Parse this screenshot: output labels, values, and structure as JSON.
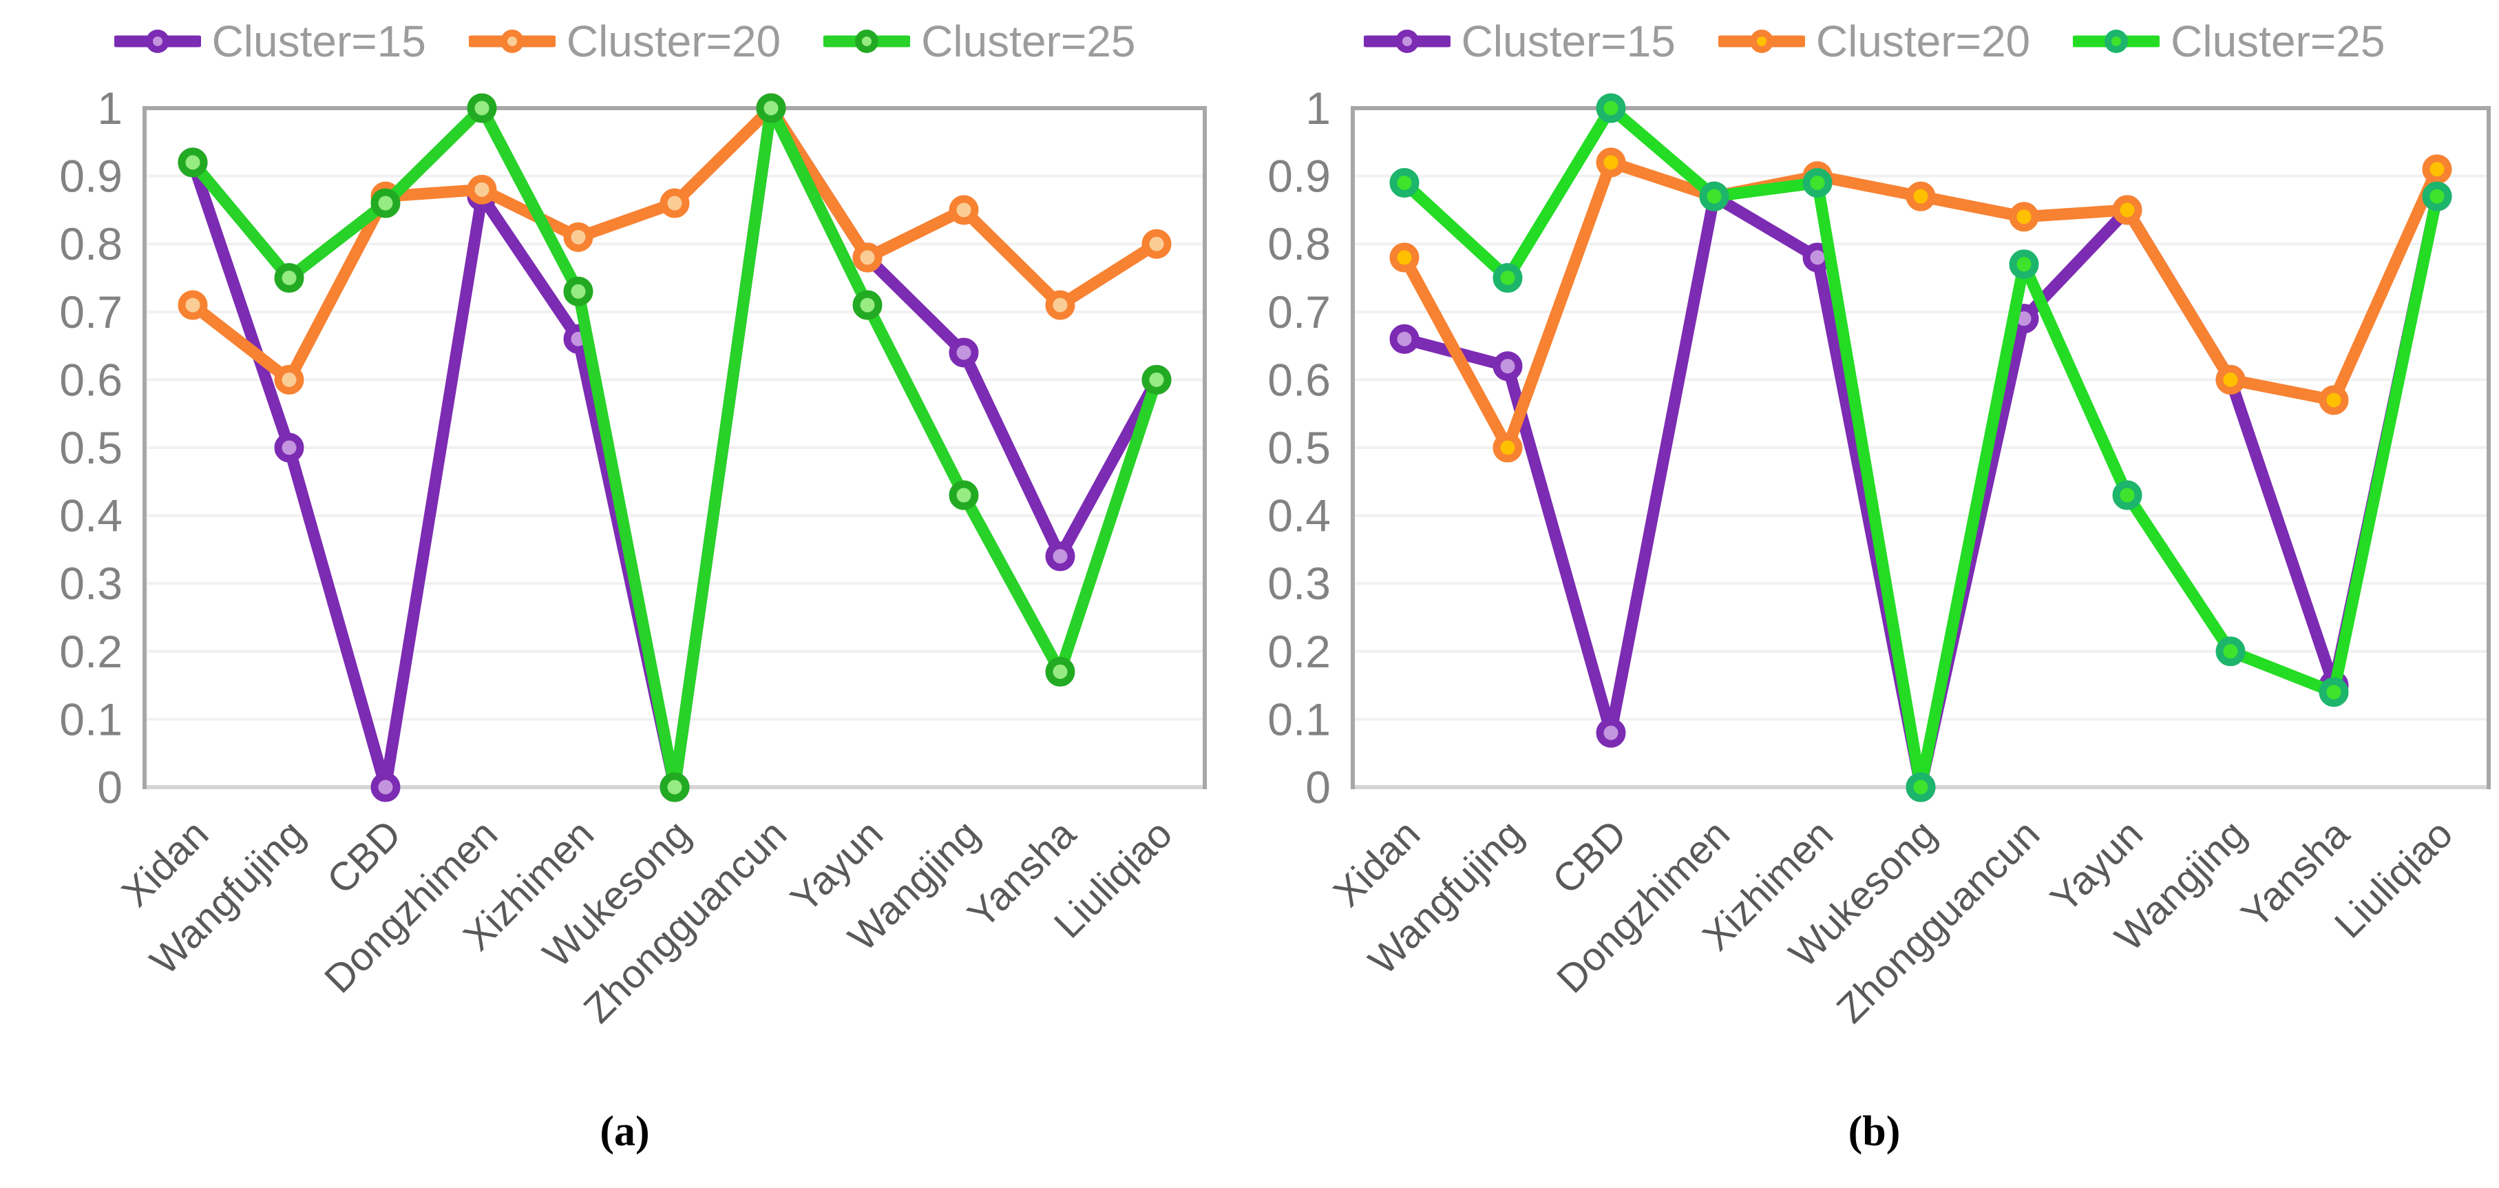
{
  "figure": {
    "background": "#ffffff",
    "caption_a": "(a)",
    "caption_b": "(b)"
  },
  "style_colors": {
    "gridline": "#f1f1f1",
    "plot_border": "#a7a7a7",
    "baseline": "#d5d5d5",
    "y_tick_text": "#828282",
    "x_label_text": "#595959",
    "legend_text": "#9c9c9c",
    "caption_text": "#000000"
  },
  "chart_data": [
    {
      "id": "a",
      "type": "line",
      "caption": "(a)",
      "legend_position": "top",
      "grid": true,
      "ylim": [
        0,
        1
      ],
      "yticks": [
        1,
        0.9,
        0.8,
        0.7,
        0.6,
        0.5,
        0.4,
        0.3,
        0.2,
        0.1,
        0
      ],
      "categories": [
        "Xidan",
        "Wangfujing",
        "CBD",
        "Dongzhimen",
        "Xizhimen",
        "Wukesong",
        "Zhongguancun",
        "Yayun",
        "Wangjing",
        "Yansha",
        "Liuliqiao"
      ],
      "series": [
        {
          "name": "Cluster=15",
          "color": "#7c2bb3",
          "marker_ring": "#7c2bb3",
          "marker_fill": "#c495df",
          "values": [
            0.92,
            0.5,
            0.0,
            0.87,
            0.66,
            0.0,
            1.0,
            0.78,
            0.64,
            0.34,
            0.6
          ]
        },
        {
          "name": "Cluster=20",
          "color": "#f78232",
          "marker_ring": "#f78232",
          "marker_fill": "#facd96",
          "values": [
            0.71,
            0.6,
            0.87,
            0.88,
            0.81,
            0.86,
            1.0,
            0.78,
            0.85,
            0.71,
            0.8
          ]
        },
        {
          "name": "Cluster=25",
          "color": "#28d228",
          "marker_ring": "#23aa23",
          "marker_fill": "#96eb82",
          "values": [
            0.92,
            0.75,
            0.86,
            1.0,
            0.73,
            0.0,
            1.0,
            0.71,
            0.43,
            0.17,
            0.6
          ]
        }
      ]
    },
    {
      "id": "b",
      "type": "line",
      "caption": "(b)",
      "legend_position": "top",
      "grid": true,
      "ylim": [
        0,
        1
      ],
      "yticks": [
        1,
        0.9,
        0.8,
        0.7,
        0.6,
        0.5,
        0.4,
        0.3,
        0.2,
        0.1,
        0
      ],
      "categories": [
        "Xidan",
        "Wangfujing",
        "CBD",
        "Dongzhimen",
        "Xizhimen",
        "Wukesong",
        "Zhongguancun",
        "Yayun",
        "Wangjing",
        "Yansha",
        "Liuliqiao"
      ],
      "series": [
        {
          "name": "Cluster=15",
          "color": "#7c2bb3",
          "marker_ring": "#7c2bb3",
          "marker_fill": "#c495df",
          "values": [
            0.66,
            0.62,
            0.08,
            0.87,
            0.78,
            0.0,
            0.69,
            0.85,
            0.6,
            0.15,
            0.87
          ]
        },
        {
          "name": "Cluster=20",
          "color": "#f78232",
          "marker_ring": "#f78232",
          "marker_fill": "#ffc000",
          "values": [
            0.78,
            0.5,
            0.92,
            0.87,
            0.9,
            0.87,
            0.84,
            0.85,
            0.6,
            0.57,
            0.91
          ]
        },
        {
          "name": "Cluster=25",
          "color": "#24dc24",
          "marker_ring": "#1cb56b",
          "marker_fill": "#3fe32c",
          "values": [
            0.89,
            0.75,
            1.0,
            0.87,
            0.89,
            0.0,
            0.77,
            0.43,
            0.2,
            0.14,
            0.87
          ]
        }
      ]
    }
  ]
}
